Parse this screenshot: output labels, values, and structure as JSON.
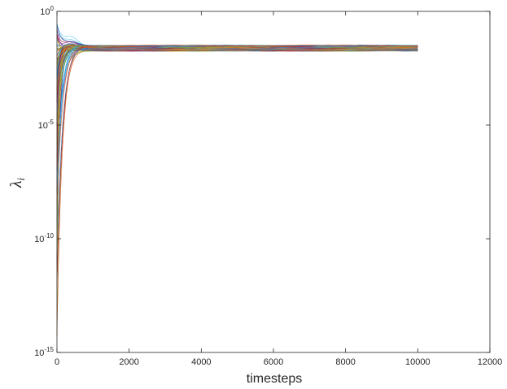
{
  "chart_data": {
    "type": "line",
    "title": "",
    "xlabel": "timesteps",
    "ylabel": "λ",
    "ylabel_subscript": "i",
    "x_scale": "linear",
    "y_scale": "log",
    "xlim": [
      0,
      12000
    ],
    "ylim": [
      1e-15,
      1
    ],
    "xticks": [
      0,
      2000,
      4000,
      6000,
      8000,
      10000,
      12000
    ],
    "xtick_labels": [
      "0",
      "2000",
      "4000",
      "6000",
      "8000",
      "10000",
      "12000"
    ],
    "yticks": [
      1e-15,
      1e-10,
      1e-05,
      1
    ],
    "ytick_labels": [
      {
        "base": "10",
        "exp": "-15"
      },
      {
        "base": "10",
        "exp": "-10"
      },
      {
        "base": "10",
        "exp": "-5"
      },
      {
        "base": "10",
        "exp": "0"
      }
    ],
    "grid": false,
    "legend": "none",
    "series_count": 100,
    "series_summary": {
      "x_range": [
        0,
        10000
      ],
      "steady_state_band_y": [
        0.018,
        0.032
      ],
      "initial_y_range": [
        1e-15,
        0.3
      ],
      "overshoot_peak_y": 0.05,
      "convergence_x": 1500
    }
  },
  "colors": {
    "axes": "#262626",
    "series_palette": [
      "#0072BD",
      "#D95319",
      "#EDB120",
      "#7E2F8E",
      "#77AC30",
      "#4DBEEE",
      "#A2142F"
    ]
  }
}
